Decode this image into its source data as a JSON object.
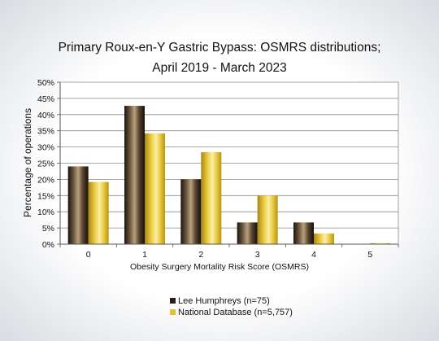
{
  "chart_data": {
    "type": "bar",
    "title_line1": "Primary Roux-en-Y Gastric Bypass: OSMRS distributions;",
    "title_line2": "April 2019 - March 2023",
    "xlabel": "Obesity Surgery Mortality Risk Score (OSMRS)",
    "ylabel": "Percentage of operations",
    "categories": [
      "0",
      "1",
      "2",
      "3",
      "4",
      "5"
    ],
    "ylim": [
      0,
      50
    ],
    "yticks": [
      "0%",
      "5%",
      "10%",
      "15%",
      "20%",
      "25%",
      "30%",
      "35%",
      "40%",
      "45%",
      "50%"
    ],
    "grid": true,
    "legend_position": "bottom",
    "series": [
      {
        "name": "Lee Humphreys (n=75)",
        "color": "#2a1d12",
        "values": [
          24,
          42.7,
          20,
          6.7,
          6.7,
          0
        ]
      },
      {
        "name": "National Database (n=5,757)",
        "color": "#e2c233",
        "values": [
          19.2,
          34.2,
          28.4,
          15,
          3.3,
          0.3
        ]
      }
    ]
  }
}
